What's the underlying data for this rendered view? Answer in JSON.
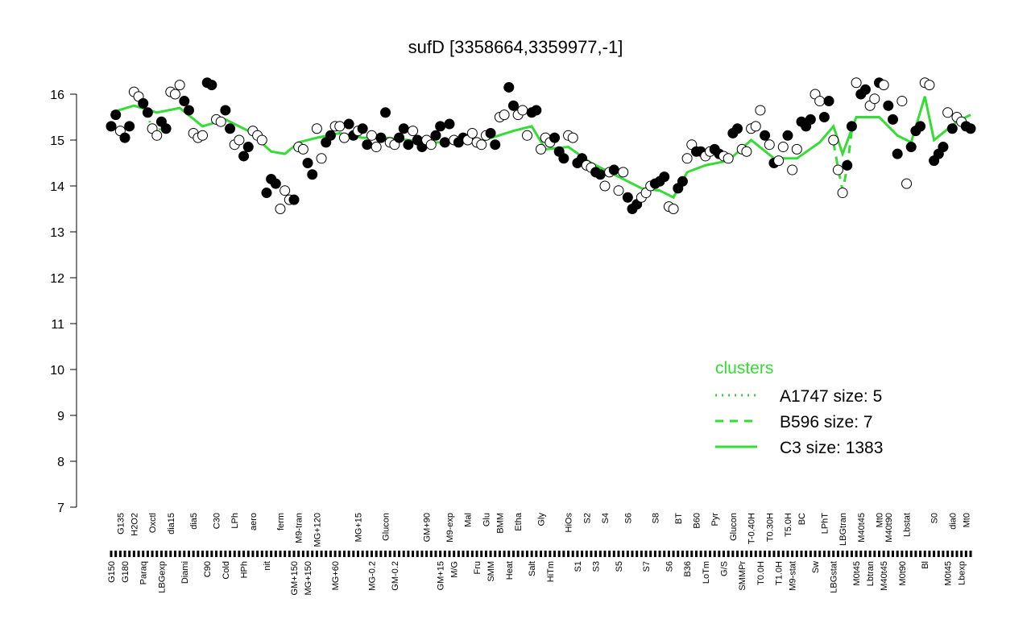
{
  "chart_data": {
    "type": "scatter-line",
    "title": "sufD [3358664,3359977,-1]",
    "ylim": [
      7,
      16
    ],
    "yticks": [
      7,
      8,
      9,
      10,
      11,
      12,
      13,
      14,
      15,
      16
    ],
    "categories": [
      "G150",
      null,
      "G135",
      "G180",
      null,
      "H2O2",
      null,
      "Paraq",
      null,
      "Oxctl",
      null,
      "LBGexp",
      null,
      "dia15",
      null,
      null,
      "Diami",
      null,
      "dia5",
      null,
      null,
      "C90",
      null,
      "C30",
      null,
      "Cold",
      null,
      "LPh",
      null,
      "HPh",
      null,
      "aero",
      null,
      null,
      "nit",
      null,
      null,
      "ferm",
      null,
      null,
      "GM+150",
      "M9-tran",
      null,
      "MG+150",
      null,
      "MG+120",
      null,
      null,
      null,
      "MG+60",
      null,
      null,
      null,
      null,
      "MG+15",
      null,
      null,
      "MG-0.2",
      null,
      null,
      "Glucon",
      null,
      "GM-0.2",
      null,
      null,
      null,
      null,
      null,
      null,
      "GM+90",
      null,
      null,
      "GM+15",
      null,
      "M9-exp",
      "M/G",
      null,
      null,
      "Mal",
      null,
      "Fru",
      null,
      "Glu",
      "SMM",
      null,
      "BMM",
      null,
      "Heat",
      null,
      "Etha",
      null,
      null,
      "Salt",
      null,
      "Gly",
      null,
      "HiTm",
      null,
      null,
      null,
      "HiOs",
      null,
      "S1",
      null,
      "S2",
      null,
      "S3",
      null,
      "S4",
      null,
      null,
      "S5",
      null,
      "S6",
      null,
      null,
      null,
      "S7",
      null,
      "S8",
      null,
      null,
      "S6",
      null,
      "BT",
      null,
      "B36",
      null,
      "B60",
      null,
      "LoTm",
      null,
      "Pyr",
      null,
      "G/S",
      null,
      "Glucon",
      null,
      "SMMPr",
      null,
      "T-0.40H",
      null,
      "T0.0H",
      null,
      "T0.30H",
      null,
      "T1.0H",
      null,
      "T5.0H",
      "M9-stat",
      null,
      "BC",
      null,
      null,
      "Sw",
      null,
      "LPhT",
      null,
      "LBGstat",
      null,
      "LBGtran",
      null,
      null,
      "M0t45",
      "M40t45",
      null,
      "Lbtran",
      null,
      "Mt0",
      "M40t45",
      "M40t90",
      null,
      null,
      "M0t90",
      "Lbstat",
      null,
      null,
      null,
      "Bl",
      null,
      "S0",
      null,
      null,
      "M0t45",
      "dia0",
      null,
      "Lbexp",
      "Mt0",
      null
    ],
    "values": [
      15.3,
      15.55,
      15.2,
      15.05,
      15.3,
      16.05,
      15.95,
      15.8,
      15.6,
      15.25,
      15.1,
      15.4,
      15.25,
      16.05,
      16.0,
      16.2,
      15.85,
      15.65,
      15.15,
      15.05,
      15.1,
      16.25,
      16.2,
      15.45,
      15.4,
      15.65,
      15.25,
      14.9,
      15.0,
      14.65,
      14.85,
      15.2,
      15.1,
      15.0,
      13.85,
      14.15,
      14.05,
      13.5,
      13.9,
      13.7,
      13.7,
      14.85,
      14.8,
      14.5,
      14.25,
      15.25,
      14.6,
      14.95,
      15.1,
      15.3,
      15.3,
      15.05,
      15.35,
      15.1,
      15.2,
      15.25,
      14.9,
      15.1,
      14.85,
      15.05,
      15.6,
      14.95,
      14.9,
      15.05,
      15.25,
      14.9,
      15.2,
      15.0,
      14.85,
      15.0,
      14.9,
      15.1,
      15.3,
      14.95,
      15.35,
      15.0,
      14.95,
      15.05,
      15.0,
      15.15,
      14.95,
      14.9,
      15.1,
      15.15,
      14.9,
      15.5,
      15.55,
      16.15,
      15.75,
      15.55,
      15.65,
      15.1,
      15.6,
      15.65,
      14.8,
      15.05,
      14.95,
      15.05,
      14.75,
      14.6,
      15.1,
      15.05,
      14.5,
      14.6,
      14.45,
      14.4,
      14.3,
      14.25,
      14.0,
      14.3,
      14.35,
      13.9,
      14.3,
      13.75,
      13.5,
      13.6,
      13.75,
      13.85,
      14.0,
      14.05,
      14.1,
      14.2,
      13.55,
      13.5,
      13.95,
      14.1,
      14.6,
      14.9,
      14.75,
      14.75,
      14.65,
      14.75,
      14.8,
      14.7,
      14.65,
      14.6,
      15.15,
      15.25,
      14.8,
      14.75,
      15.25,
      15.3,
      15.65,
      15.1,
      14.9,
      14.5,
      14.55,
      14.85,
      15.1,
      14.35,
      14.8,
      15.4,
      15.3,
      15.45,
      16.0,
      15.85,
      15.5,
      15.85,
      15.0,
      14.35,
      13.85,
      14.45,
      15.3,
      16.25,
      16.0,
      16.1,
      15.75,
      15.9,
      16.25,
      16.2,
      15.75,
      15.45,
      14.7,
      15.85,
      14.05,
      14.85,
      15.2,
      15.3,
      16.25,
      16.2,
      14.55,
      14.7,
      14.85,
      15.6,
      15.25,
      15.5,
      15.4,
      15.3,
      15.25
    ],
    "filled": [
      true,
      true,
      false,
      true,
      true,
      false,
      false,
      true,
      true,
      false,
      false,
      true,
      true,
      false,
      false,
      false,
      true,
      true,
      false,
      false,
      false,
      true,
      true,
      false,
      false,
      true,
      true,
      false,
      false,
      true,
      true,
      false,
      false,
      false,
      true,
      true,
      true,
      false,
      false,
      false,
      true,
      false,
      false,
      true,
      true,
      false,
      false,
      true,
      true,
      false,
      false,
      false,
      true,
      true,
      false,
      true,
      true,
      false,
      false,
      true,
      true,
      false,
      false,
      true,
      true,
      true,
      false,
      true,
      true,
      false,
      false,
      true,
      true,
      true,
      true,
      false,
      true,
      true,
      false,
      false,
      false,
      false,
      false,
      true,
      true,
      false,
      false,
      true,
      true,
      false,
      false,
      false,
      true,
      true,
      false,
      false,
      false,
      true,
      true,
      true,
      false,
      false,
      true,
      true,
      false,
      false,
      true,
      true,
      false,
      false,
      true,
      false,
      false,
      true,
      true,
      true,
      false,
      false,
      false,
      true,
      true,
      true,
      false,
      false,
      true,
      true,
      false,
      false,
      true,
      true,
      false,
      false,
      true,
      true,
      false,
      false,
      true,
      true,
      false,
      false,
      false,
      false,
      false,
      true,
      false,
      true,
      false,
      false,
      true,
      false,
      false,
      true,
      true,
      true,
      false,
      false,
      true,
      true,
      false,
      false,
      false,
      true,
      true,
      false,
      true,
      true,
      false,
      false,
      true,
      false,
      true,
      true,
      true,
      false,
      false,
      true,
      true,
      true,
      false,
      false,
      true,
      true,
      true,
      false,
      true,
      false,
      false,
      true,
      true
    ],
    "legend_title": "clusters",
    "series": [
      {
        "name": "A1747 size: 5",
        "color": "#33dd33",
        "dash": "dotted",
        "x": [
          8,
          9,
          10,
          11,
          12
        ],
        "values": [
          15.55,
          15.2,
          15.15,
          15.3,
          15.2
        ]
      },
      {
        "name": "B596 size: 7",
        "color": "#33dd33",
        "dash": "dashed",
        "x": [
          158,
          159,
          160,
          161,
          162
        ],
        "values": [
          14.95,
          14.4,
          13.9,
          14.4,
          15.2
        ]
      },
      {
        "name": "C3 size: 1383",
        "color": "#33dd33",
        "dash": "solid",
        "x": [
          0,
          5,
          10,
          15,
          20,
          25,
          30,
          35,
          38,
          41,
          45,
          50,
          55,
          60,
          70,
          80,
          88,
          92,
          95,
          100,
          105,
          112,
          116,
          120,
          123,
          126,
          130,
          135,
          140,
          145,
          150,
          155,
          158,
          160,
          163,
          168,
          172,
          175,
          178,
          180,
          185,
          188
        ],
        "values": [
          15.6,
          15.75,
          15.6,
          15.7,
          15.3,
          15.45,
          15.2,
          14.75,
          14.7,
          14.95,
          15.05,
          15.15,
          15.05,
          15.05,
          14.95,
          14.95,
          15.2,
          15.3,
          14.8,
          14.85,
          14.5,
          14.15,
          13.95,
          13.9,
          13.75,
          14.3,
          14.45,
          14.55,
          15.0,
          14.6,
          14.6,
          14.95,
          15.3,
          14.7,
          15.5,
          15.5,
          15.1,
          14.95,
          15.95,
          15.0,
          15.4,
          15.55
        ]
      }
    ]
  }
}
